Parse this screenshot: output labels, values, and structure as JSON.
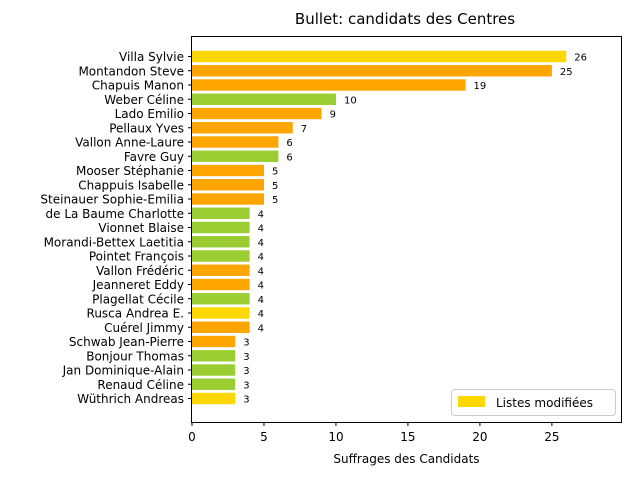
{
  "chart_data": {
    "type": "bar",
    "orientation": "horizontal",
    "title": "Bullet: candidats des Centres",
    "xlabel": "Suffrages des Candidats",
    "ylabel": "",
    "xlim": [
      0,
      29.8
    ],
    "xticks": [
      0,
      5,
      10,
      15,
      20,
      25
    ],
    "grid": false,
    "legend": {
      "placement": "lower-right",
      "entries": [
        {
          "label": "Listes modifiées",
          "color": "#FFD700"
        }
      ]
    },
    "colors": {
      "yellow": "#FFD700",
      "orange": "#FFA500",
      "green": "#9ACD32"
    },
    "categories": [
      "Villa Sylvie",
      "Montandon Steve",
      "Chapuis Manon",
      "Weber Céline",
      "Lado Emilio",
      "Pellaux Yves",
      "Vallon Anne-Laure",
      "Favre Guy",
      "Mooser Stéphanie",
      "Chappuis Isabelle",
      "Steinauer Sophie-Emilia",
      "de La Baume Charlotte",
      "Vionnet Blaise",
      "Morandi-Bettex Laetitia",
      "Pointet François",
      "Vallon Frédéric",
      "Jeanneret Eddy",
      "Plagellat Cécile",
      "Rusca Andrea E.",
      "Cuérel Jimmy",
      "Schwab Jean-Pierre",
      "Bonjour Thomas",
      "Jan Dominique-Alain",
      "Renaud Céline",
      "Wüthrich Andreas"
    ],
    "values": [
      26,
      25,
      19,
      10,
      9,
      7,
      6,
      6,
      5,
      5,
      5,
      4,
      4,
      4,
      4,
      4,
      4,
      4,
      4,
      4,
      3,
      3,
      3,
      3,
      3
    ],
    "bar_colors": [
      "yellow",
      "orange",
      "orange",
      "green",
      "orange",
      "orange",
      "orange",
      "green",
      "orange",
      "orange",
      "orange",
      "green",
      "green",
      "green",
      "green",
      "orange",
      "orange",
      "green",
      "yellow",
      "orange",
      "orange",
      "green",
      "green",
      "green",
      "yellow"
    ]
  }
}
